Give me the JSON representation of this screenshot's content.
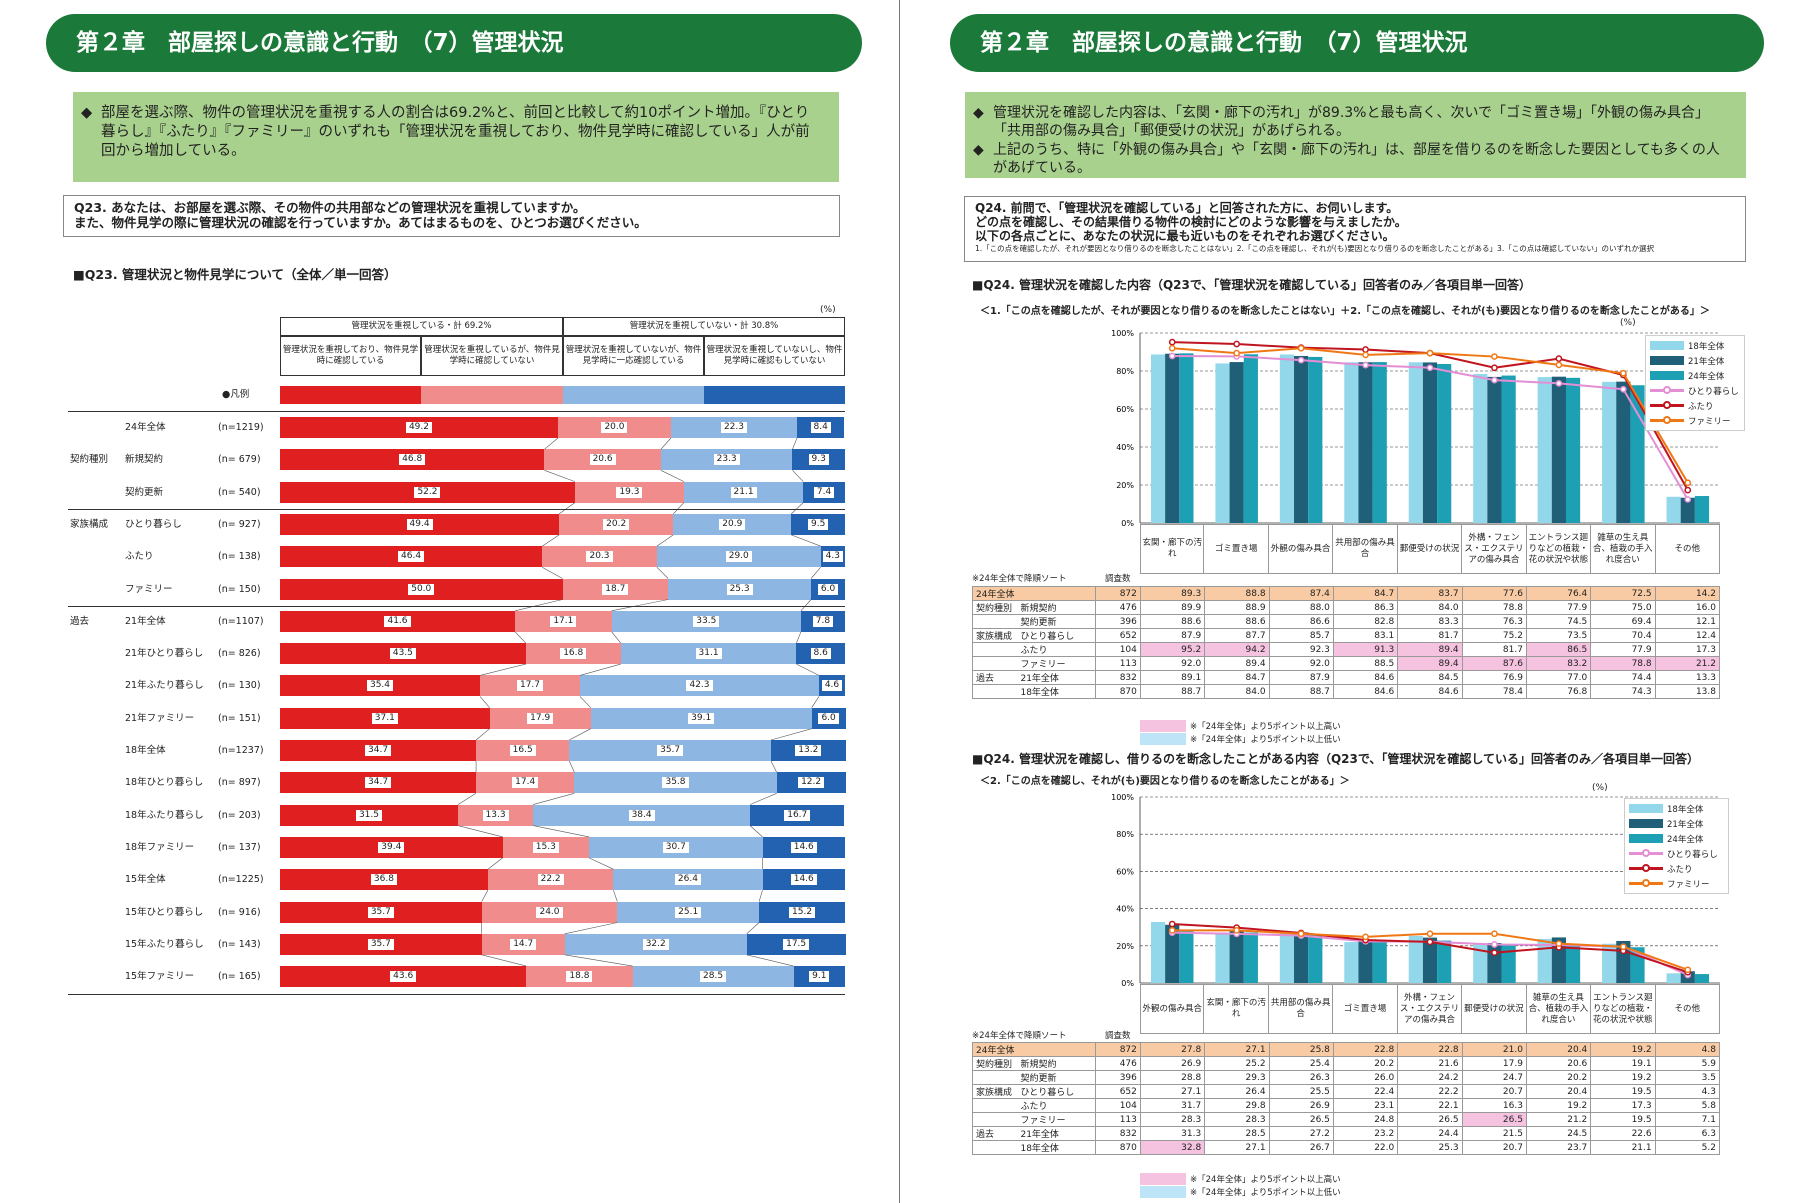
{
  "left": {
    "banner": "第２章　部屋探しの意識と行動　（7）管理状況",
    "summary": [
      "部屋を選ぶ際、物件の管理状況を重視する人の割合は69.2%と、前回と比較して約10ポイント増加。『ひとり暮らし』『ふたり』『ファミリー』のいずれも「管理状況を重視しており、物件見学時に確認している」人が前回から増加している。"
    ],
    "question": [
      "Q23. あなたは、お部屋を選ぶ際、その物件の共用部などの管理状況を重視していますか。",
      "また、物件見学の際に管理状況の確認を行っていますか。あてはまるものを、ひとつお選びください。"
    ],
    "section_title": "■Q23. 管理状況と物件見学について（全体／単一回答）",
    "pct_unit": "(%)",
    "group_headers": [
      "管理状況を重視している・計 69.2%",
      "管理状況を重視していない・計 30.8%"
    ],
    "col_headers": [
      "管理状況を重視しており、物件見学時に確認している",
      "管理状況を重視しているが、物件見学時に確認していない",
      "管理状況を重視していないが、物件見学時に一応確認している",
      "管理状況を重視していないし、物件見学時に確認もしていない"
    ],
    "legend_label": "●凡例",
    "colors": [
      "#e02020",
      "#f08c8c",
      "#8db6e2",
      "#2262b0"
    ],
    "chart_data": {
      "type": "bar",
      "stacked": true,
      "unit": "%",
      "series_names": [
        "管理状況を重視しており、物件見学時に確認している",
        "管理状況を重視しているが、物件見学時に確認していない",
        "管理状況を重視していないが、物件見学時に一応確認している",
        "管理状況を重視していないし、物件見学時に確認もしていない"
      ],
      "rows": [
        {
          "group": "",
          "label": "24年全体",
          "n": "(n=1219)",
          "values": [
            49.2,
            20.0,
            22.3,
            8.4
          ]
        },
        {
          "group": "契約種別",
          "label": "新規契約",
          "n": "(n=  679)",
          "values": [
            46.8,
            20.6,
            23.3,
            9.3
          ]
        },
        {
          "group": "",
          "label": "契約更新",
          "n": "(n=  540)",
          "values": [
            52.2,
            19.3,
            21.1,
            7.4
          ]
        },
        {
          "group": "家族構成",
          "label": "ひとり暮らし",
          "n": "(n=  927)",
          "values": [
            49.4,
            20.2,
            20.9,
            9.5
          ]
        },
        {
          "group": "",
          "label": "ふたり",
          "n": "(n=  138)",
          "values": [
            46.4,
            20.3,
            29.0,
            4.3
          ]
        },
        {
          "group": "",
          "label": "ファミリー",
          "n": "(n=  150)",
          "values": [
            50.0,
            18.7,
            25.3,
            6.0
          ]
        },
        {
          "group": "過去",
          "label": "21年全体",
          "n": "(n=1107)",
          "values": [
            41.6,
            17.1,
            33.5,
            7.8
          ]
        },
        {
          "group": "",
          "label": "21年ひとり暮らし",
          "n": "(n=  826)",
          "values": [
            43.5,
            16.8,
            31.1,
            8.6
          ]
        },
        {
          "group": "",
          "label": "21年ふたり暮らし",
          "n": "(n=  130)",
          "values": [
            35.4,
            17.7,
            42.3,
            4.6
          ]
        },
        {
          "group": "",
          "label": "21年ファミリー",
          "n": "(n=  151)",
          "values": [
            37.1,
            17.9,
            39.1,
            6.0
          ]
        },
        {
          "group": "",
          "label": "18年全体",
          "n": "(n=1237)",
          "values": [
            34.7,
            16.5,
            35.7,
            13.2
          ]
        },
        {
          "group": "",
          "label": "18年ひとり暮らし",
          "n": "(n=  897)",
          "values": [
            34.7,
            17.4,
            35.8,
            12.2
          ]
        },
        {
          "group": "",
          "label": "18年ふたり暮らし",
          "n": "(n=  203)",
          "values": [
            31.5,
            13.3,
            38.4,
            16.7
          ]
        },
        {
          "group": "",
          "label": "18年ファミリー",
          "n": "(n=  137)",
          "values": [
            39.4,
            15.3,
            30.7,
            14.6
          ]
        },
        {
          "group": "",
          "label": "15年全体",
          "n": "(n=1225)",
          "values": [
            36.8,
            22.2,
            26.4,
            14.6
          ]
        },
        {
          "group": "",
          "label": "15年ひとり暮らし",
          "n": "(n=  916)",
          "values": [
            35.7,
            24.0,
            25.1,
            15.2
          ]
        },
        {
          "group": "",
          "label": "15年ふたり暮らし",
          "n": "(n=  143)",
          "values": [
            35.7,
            14.7,
            32.2,
            17.5
          ]
        },
        {
          "group": "",
          "label": "15年ファミリー",
          "n": "(n=  165)",
          "values": [
            43.6,
            18.8,
            28.5,
            9.1
          ]
        }
      ]
    }
  },
  "right": {
    "banner": "第２章　部屋探しの意識と行動　（7）管理状況",
    "summary": [
      "管理状況を確認した内容は、「玄関・廊下の汚れ」が89.3%と最も高く、次いで「ゴミ置き場」「外観の傷み具合」「共用部の傷み具合」「郵便受けの状況」があげられる。",
      "上記のうち、特に「外観の傷み具合」や「玄関・廊下の汚れ」は、部屋を借りるのを断念した要因としても多くの人があげている。"
    ],
    "question": [
      "Q24. 前問で、「管理状況を確認している」と回答された方に、お伺いします。",
      "どの点を確認し、その結果借りる物件の検討にどのような影響を与えましたか。",
      "以下の各点ごとに、あなたの状況に最も近いものをそれぞれお選びください。"
    ],
    "question_note": "1.「この点を確認したが、それが要因となり借りるのを断念したことはない」2.「この点を確認し、それが(も)要因となり借りるのを断念したことがある」3.「この点は確認していない」のいずれか選択",
    "legend": {
      "bars": [
        "18年全体",
        "21年全体",
        "24年全体"
      ],
      "lines": [
        "ひとり暮らし",
        "ふたり",
        "ファミリー"
      ]
    },
    "colors": {
      "b18": "#92d8ea",
      "b21": "#1f5f78",
      "b24": "#1ea0b4",
      "hitori": "#e48ed6",
      "futari": "#c0141e",
      "family": "#f07814"
    },
    "sort_note": "※24年全体で降順ソート",
    "n_header": "調査数",
    "key_hi": "※「24年全体」より5ポイント以上高い",
    "key_lo": "※「24年全体」より5ポイント以上低い",
    "rows_meta": [
      {
        "group": "24年全体",
        "label": "",
        "n": "872"
      },
      {
        "group": "契約種別",
        "label": "新規契約",
        "n": "476"
      },
      {
        "group": "",
        "label": "契約更新",
        "n": "396"
      },
      {
        "group": "家族構成",
        "label": "ひとり暮らし",
        "n": "652"
      },
      {
        "group": "",
        "label": "ふたり",
        "n": "104"
      },
      {
        "group": "",
        "label": "ファミリー",
        "n": "113"
      },
      {
        "group": "過去",
        "label": "21年全体",
        "n": "832"
      },
      {
        "group": "",
        "label": "18年全体",
        "n": "870"
      }
    ],
    "chart1": {
      "title": "■Q24. 管理状況を確認した内容（Q23で、「管理状況を確認している」回答者のみ／各項目単一回答）",
      "subtitle": "＜1.「この点を確認したが、それが要因となり借りるのを断念したことはない」＋2.「この点を確認し、それが(も)要因となり借りるのを断念したことがある」＞",
      "pct_unit": "(%)",
      "yticks": [
        "100%",
        "80%",
        "60%",
        "40%",
        "20%",
        "0%"
      ],
      "categories": [
        "玄関・廊下の汚れ",
        "ゴミ置き場",
        "外観の傷み具合",
        "共用部の傷み具合",
        "郵便受けの状況",
        "外構・フェンス・エクステリアの傷み具合",
        "エントランス廻りなどの植栽・花の状況や状態",
        "雑草の生え具合、植栽の手入れ度合い",
        "その他"
      ],
      "table": [
        [
          "89.3",
          "88.8",
          "87.4",
          "84.7",
          "83.7",
          "77.6",
          "76.4",
          "72.5",
          "14.2"
        ],
        [
          "89.9",
          "88.9",
          "88.0",
          "86.3",
          "84.0",
          "78.8",
          "77.9",
          "75.0",
          "16.0"
        ],
        [
          "88.6",
          "88.6",
          "86.6",
          "82.8",
          "83.3",
          "76.3",
          "74.5",
          "69.4",
          "12.1"
        ],
        [
          "87.9",
          "87.7",
          "85.7",
          "83.1",
          "81.7",
          "75.2",
          "73.5",
          "70.4",
          "12.4"
        ],
        [
          "95.2",
          "94.2",
          "92.3",
          "91.3",
          "89.4",
          "81.7",
          "86.5",
          "77.9",
          "17.3"
        ],
        [
          "92.0",
          "89.4",
          "92.0",
          "88.5",
          "89.4",
          "87.6",
          "83.2",
          "78.8",
          "21.2"
        ],
        [
          "89.1",
          "84.7",
          "87.9",
          "84.6",
          "84.5",
          "76.9",
          "77.0",
          "74.4",
          "13.3"
        ],
        [
          "88.7",
          "84.0",
          "88.7",
          "84.6",
          "84.6",
          "78.4",
          "76.8",
          "74.3",
          "13.8"
        ]
      ],
      "hi": [
        [
          4,
          0
        ],
        [
          4,
          1
        ],
        [
          4,
          3
        ],
        [
          4,
          4
        ],
        [
          4,
          6
        ],
        [
          5,
          4
        ],
        [
          5,
          5
        ],
        [
          5,
          6
        ],
        [
          5,
          7
        ],
        [
          5,
          8
        ]
      ],
      "lo": [],
      "chart_data": {
        "type": "bar",
        "ylim": [
          0,
          100
        ],
        "categories": [
          "玄関・廊下の汚れ",
          "ゴミ置き場",
          "外観の傷み具合",
          "共用部の傷み具合",
          "郵便受けの状況",
          "外構・フェンス・エクステリアの傷み具合",
          "エントランス廻りなどの植栽・花の状況や状態",
          "雑草の生え具合、植栽の手入れ度合い",
          "その他"
        ],
        "series": [
          {
            "name": "18年全体",
            "kind": "bar",
            "values": [
              88.7,
              84.0,
              88.7,
              84.6,
              84.6,
              78.4,
              76.8,
              74.3,
              13.8
            ]
          },
          {
            "name": "21年全体",
            "kind": "bar",
            "values": [
              89.1,
              84.7,
              87.9,
              84.6,
              84.5,
              76.9,
              77.0,
              74.4,
              13.3
            ]
          },
          {
            "name": "24年全体",
            "kind": "bar",
            "values": [
              89.3,
              88.8,
              87.4,
              84.7,
              83.7,
              77.6,
              76.4,
              72.5,
              14.2
            ]
          },
          {
            "name": "ひとり暮らし",
            "kind": "line",
            "values": [
              87.9,
              87.7,
              85.7,
              83.1,
              81.7,
              75.2,
              73.5,
              70.4,
              12.4
            ]
          },
          {
            "name": "ふたり",
            "kind": "line",
            "values": [
              95.2,
              94.2,
              92.3,
              91.3,
              89.4,
              81.7,
              86.5,
              77.9,
              17.3
            ]
          },
          {
            "name": "ファミリー",
            "kind": "line",
            "values": [
              92.0,
              89.4,
              92.0,
              88.5,
              89.4,
              87.6,
              83.2,
              78.8,
              21.2
            ]
          }
        ]
      }
    },
    "chart2": {
      "title": "■Q24. 管理状況を確認し、借りるのを断念したことがある内容（Q23で、「管理状況を確認している」回答者のみ／各項目単一回答）",
      "subtitle": "＜2.「この点を確認し、それが(も)要因となり借りるのを断念したことがある」＞",
      "pct_unit": "(%)",
      "yticks": [
        "100%",
        "80%",
        "60%",
        "40%",
        "20%",
        "0%"
      ],
      "categories": [
        "外観の傷み具合",
        "玄関・廊下の汚れ",
        "共用部の傷み具合",
        "ゴミ置き場",
        "外構・フェンス・エクステリアの傷み具合",
        "郵便受けの状況",
        "雑草の生え具合、植栽の手入れ度合い",
        "エントランス廻りなどの植栽・花の状況や状態",
        "その他"
      ],
      "table": [
        [
          "27.8",
          "27.1",
          "25.8",
          "22.8",
          "22.8",
          "21.0",
          "20.4",
          "19.2",
          "4.8"
        ],
        [
          "26.9",
          "25.2",
          "25.4",
          "20.2",
          "21.6",
          "17.9",
          "20.6",
          "19.1",
          "5.9"
        ],
        [
          "28.8",
          "29.3",
          "26.3",
          "26.0",
          "24.2",
          "24.7",
          "20.2",
          "19.2",
          "3.5"
        ],
        [
          "27.1",
          "26.4",
          "25.5",
          "22.4",
          "22.2",
          "20.7",
          "20.4",
          "19.5",
          "4.3"
        ],
        [
          "31.7",
          "29.8",
          "26.9",
          "23.1",
          "22.1",
          "16.3",
          "19.2",
          "17.3",
          "5.8"
        ],
        [
          "28.3",
          "28.3",
          "26.5",
          "24.8",
          "26.5",
          "26.5",
          "21.2",
          "19.5",
          "7.1"
        ],
        [
          "31.3",
          "28.5",
          "27.2",
          "23.2",
          "24.4",
          "21.5",
          "24.5",
          "22.6",
          "6.3"
        ],
        [
          "32.8",
          "27.1",
          "26.7",
          "22.0",
          "25.3",
          "20.7",
          "23.7",
          "21.1",
          "5.2"
        ]
      ],
      "hi": [
        [
          5,
          5
        ],
        [
          7,
          0
        ]
      ],
      "lo": [],
      "chart_data": {
        "type": "bar",
        "ylim": [
          0,
          100
        ],
        "categories": [
          "外観の傷み具合",
          "玄関・廊下の汚れ",
          "共用部の傷み具合",
          "ゴミ置き場",
          "外構・フェンス・エクステリアの傷み具合",
          "郵便受けの状況",
          "雑草の生え具合、植栽の手入れ度合い",
          "エントランス廻りなどの植栽・花の状況や状態",
          "その他"
        ],
        "series": [
          {
            "name": "18年全体",
            "kind": "bar",
            "values": [
              32.8,
              27.1,
              26.7,
              22.0,
              25.3,
              20.7,
              23.7,
              21.1,
              5.2
            ]
          },
          {
            "name": "21年全体",
            "kind": "bar",
            "values": [
              31.3,
              28.5,
              27.2,
              23.2,
              24.4,
              21.5,
              24.5,
              22.6,
              6.3
            ]
          },
          {
            "name": "24年全体",
            "kind": "bar",
            "values": [
              27.8,
              27.1,
              25.8,
              22.8,
              22.8,
              21.0,
              20.4,
              19.2,
              4.8
            ]
          },
          {
            "name": "ひとり暮らし",
            "kind": "line",
            "values": [
              27.1,
              26.4,
              25.5,
              22.4,
              22.2,
              20.7,
              20.4,
              19.5,
              4.3
            ]
          },
          {
            "name": "ふたり",
            "kind": "line",
            "values": [
              31.7,
              29.8,
              26.9,
              23.1,
              22.1,
              16.3,
              19.2,
              17.3,
              5.8
            ]
          },
          {
            "name": "ファミリー",
            "kind": "line",
            "values": [
              28.3,
              28.3,
              26.5,
              24.8,
              26.5,
              26.5,
              21.2,
              19.5,
              7.1
            ]
          }
        ]
      }
    }
  }
}
